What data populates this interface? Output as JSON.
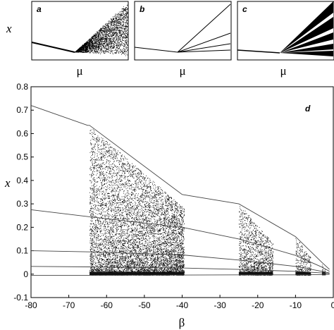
{
  "chart_data": [
    {
      "panel": "a",
      "type": "scatter",
      "xlabel": "μ",
      "ylabel": "x",
      "structure": "single branch bifurcating into a chaotic band"
    },
    {
      "panel": "b",
      "type": "line",
      "xlabel": "μ",
      "structure": "single branch splitting into several diverging lines"
    },
    {
      "panel": "c",
      "type": "scatter",
      "xlabel": "μ",
      "structure": "single branch splitting into dense chaotic bands with gaps"
    },
    {
      "panel": "d",
      "type": "scatter",
      "title": "",
      "xlabel": "β",
      "ylabel": "x",
      "xlim": [
        -80,
        0
      ],
      "ylim": [
        -0.1,
        0.8
      ],
      "xticks": [
        -80,
        -70,
        -60,
        -50,
        -40,
        -30,
        -20,
        -10,
        0
      ],
      "yticks": [
        -0.1,
        0,
        0.1,
        0.2,
        0.3,
        0.4,
        0.5,
        0.6,
        0.7,
        0.8
      ],
      "grid": false,
      "series": [
        {
          "x": [
            -80,
            -65,
            -64.5,
            -40,
            -25,
            -10,
            -3,
            -1
          ],
          "y": [
            0.72,
            0.635,
            0.635,
            0.34,
            0.3,
            0.16,
            0.05,
            0.02
          ]
        },
        {
          "x": [
            -80,
            -64.5,
            -40,
            -25,
            -10,
            -3,
            -1
          ],
          "y": [
            0.275,
            0.245,
            0.2,
            0.15,
            0.08,
            0.03,
            0.012
          ]
        },
        {
          "x": [
            -80,
            -64.5,
            -40,
            -25,
            -10,
            -3,
            -1
          ],
          "y": [
            0.1,
            0.095,
            0.082,
            0.06,
            0.033,
            0.012,
            0.005
          ]
        },
        {
          "x": [
            -80,
            -64.5,
            -40,
            -25,
            -10,
            -3,
            -1
          ],
          "y": [
            0.033,
            0.031,
            0.026,
            0.02,
            0.012,
            0.005,
            0.002
          ]
        },
        {
          "x": [
            -80,
            -64.5,
            -40,
            -25,
            -10,
            -3,
            -1
          ],
          "y": [
            -0.005,
            -0.005,
            -0.004,
            -0.003,
            -0.003,
            -0.002,
            -0.001
          ]
        }
      ],
      "chaotic_bands": [
        {
          "x": [
            -64.5,
            -39.5
          ],
          "y": [
            -0.005,
            0.63
          ]
        },
        {
          "x": [
            -25,
            -16
          ],
          "y": [
            -0.005,
            0.3
          ]
        },
        {
          "x": [
            -10,
            -6
          ],
          "y": [
            -0.005,
            0.16
          ]
        },
        {
          "x": [
            -3,
            -2
          ],
          "y": [
            -0.003,
            0.04
          ]
        }
      ]
    }
  ],
  "labels": {
    "a": "a",
    "b": "b",
    "c": "c",
    "d": "d",
    "mu": "μ",
    "beta": "β",
    "x": "x"
  }
}
